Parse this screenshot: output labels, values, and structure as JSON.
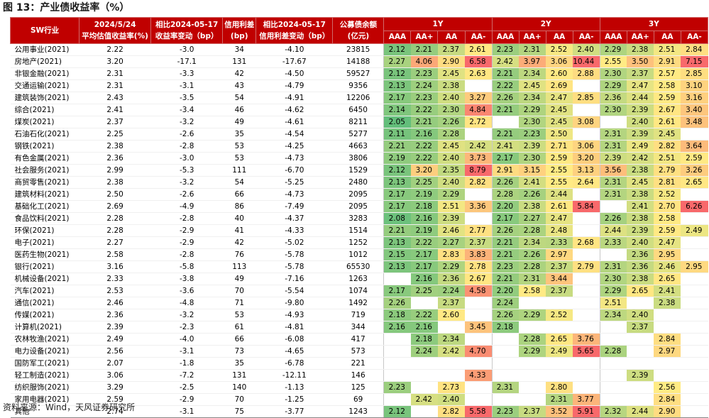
{
  "title": "图 13：产业债收益率（%）",
  "source": "资料来源：Wind，天风证券研究所",
  "header": {
    "industry": "SW行业",
    "yield_date": "2024/5/24",
    "yield_label": "平均估值收益率(%)",
    "yield_chg_top": "相比2024-05-17",
    "yield_chg_bottom": "收益率变动（bp）",
    "spread_top": "信用利差",
    "spread_bottom": "(bp)",
    "spread_chg_top": "相比2024-05-17",
    "spread_chg_bottom": "信用利差变动（bp）",
    "balance_top": "公募债余额",
    "balance_bottom": "(亿元)",
    "groups": [
      "1Y",
      "2Y",
      "3Y"
    ],
    "ratings": [
      "AAA",
      "AA+",
      "AA",
      "AA-"
    ]
  },
  "rows": [
    {
      "name": "公用事业(2021)",
      "yield": "2.22",
      "ychg": "-3.0",
      "spread": "34",
      "schg": "-4.10",
      "bal": "23815",
      "v": [
        "2.12",
        "2.21",
        "2.37",
        "2.61",
        "2.23",
        "2.31",
        "2.52",
        "2.40",
        "2.29",
        "2.38",
        "2.51",
        "2.84"
      ]
    },
    {
      "name": "房地产(2021)",
      "yield": "3.20",
      "ychg": "-17.1",
      "spread": "131",
      "schg": "-17.67",
      "bal": "14188",
      "v": [
        "2.27",
        "4.06",
        "2.90",
        "6.58",
        "2.42",
        "3.97",
        "3.06",
        "10.44",
        "2.55",
        "3.50",
        "2.91",
        "7.15"
      ]
    },
    {
      "name": "非银金融(2021)",
      "yield": "2.31",
      "ychg": "-3.3",
      "spread": "42",
      "schg": "-4.50",
      "bal": "59527",
      "v": [
        "2.12",
        "2.23",
        "2.45",
        "2.63",
        "2.21",
        "2.34",
        "2.60",
        "2.88",
        "2.30",
        "2.37",
        "2.57",
        "2.85"
      ]
    },
    {
      "name": "交通运输(2021)",
      "yield": "2.31",
      "ychg": "-3.1",
      "spread": "43",
      "schg": "-4.79",
      "bal": "9356",
      "v": [
        "2.13",
        "2.24",
        "2.38",
        "",
        "2.22",
        "2.45",
        "2.69",
        "",
        "2.29",
        "2.47",
        "2.58",
        "3.10"
      ]
    },
    {
      "name": "建筑装饰(2021)",
      "yield": "2.43",
      "ychg": "-3.5",
      "spread": "54",
      "schg": "-4.91",
      "bal": "12206",
      "v": [
        "2.17",
        "2.23",
        "2.40",
        "3.27",
        "2.26",
        "2.34",
        "2.47",
        "2.85",
        "2.36",
        "2.44",
        "2.59",
        "3.16"
      ]
    },
    {
      "name": "综合(2021)",
      "yield": "2.41",
      "ychg": "-3.4",
      "spread": "46",
      "schg": "-4.62",
      "bal": "6450",
      "v": [
        "2.14",
        "2.22",
        "2.30",
        "4.84",
        "2.21",
        "2.29",
        "2.45",
        "",
        "2.30",
        "2.39",
        "2.67",
        "3.40"
      ]
    },
    {
      "name": "煤炭(2021)",
      "yield": "2.37",
      "ychg": "-3.2",
      "spread": "49",
      "schg": "-4.61",
      "bal": "8211",
      "v": [
        "2.05",
        "2.21",
        "2.26",
        "2.72",
        "",
        "2.30",
        "2.45",
        "3.08",
        "",
        "2.40",
        "2.61",
        "3.48"
      ]
    },
    {
      "name": "石油石化(2021)",
      "yield": "2.25",
      "ychg": "-2.6",
      "spread": "35",
      "schg": "-4.54",
      "bal": "5277",
      "v": [
        "2.11",
        "2.16",
        "2.28",
        "",
        "2.21",
        "2.23",
        "2.50",
        "",
        "2.31",
        "2.39",
        "2.45",
        ""
      ]
    },
    {
      "name": "钢铁(2021)",
      "yield": "2.38",
      "ychg": "-2.8",
      "spread": "53",
      "schg": "-4.25",
      "bal": "4663",
      "v": [
        "2.21",
        "2.22",
        "2.45",
        "2.42",
        "2.41",
        "2.39",
        "2.71",
        "3.06",
        "2.31",
        "2.49",
        "2.82",
        "3.64"
      ]
    },
    {
      "name": "有色金属(2021)",
      "yield": "2.36",
      "ychg": "-3.0",
      "spread": "53",
      "schg": "-4.73",
      "bal": "3806",
      "v": [
        "2.19",
        "2.22",
        "2.40",
        "3.73",
        "2.17",
        "2.30",
        "2.59",
        "3.20",
        "2.39",
        "2.42",
        "2.51",
        "2.59"
      ]
    },
    {
      "name": "社会服务(2021)",
      "yield": "2.99",
      "ychg": "-5.3",
      "spread": "111",
      "schg": "-6.70",
      "bal": "1529",
      "v": [
        "2.12",
        "3.20",
        "2.35",
        "8.79",
        "2.91",
        "3.15",
        "2.55",
        "3.13",
        "3.56",
        "2.38",
        "2.79",
        "3.26"
      ]
    },
    {
      "name": "商贸零售(2021)",
      "yield": "2.38",
      "ychg": "-3.2",
      "spread": "54",
      "schg": "-5.25",
      "bal": "2480",
      "v": [
        "2.13",
        "2.25",
        "2.40",
        "2.82",
        "2.26",
        "2.41",
        "2.55",
        "2.64",
        "2.31",
        "2.45",
        "2.81",
        "2.65"
      ]
    },
    {
      "name": "建筑材料(2021)",
      "yield": "2.50",
      "ychg": "-2.6",
      "spread": "66",
      "schg": "-4.73",
      "bal": "2095",
      "v": [
        "2.17",
        "2.19",
        "2.29",
        "",
        "2.28",
        "2.26",
        "2.44",
        "",
        "2.31",
        "2.38",
        "2.52",
        ""
      ]
    },
    {
      "name": "基础化工(2021)",
      "yield": "2.69",
      "ychg": "-4.9",
      "spread": "86",
      "schg": "-7.49",
      "bal": "2095",
      "v": [
        "2.17",
        "2.18",
        "2.51",
        "3.36",
        "2.20",
        "2.38",
        "2.61",
        "5.84",
        "",
        "2.41",
        "2.70",
        "6.26"
      ]
    },
    {
      "name": "食品饮料(2021)",
      "yield": "2.28",
      "ychg": "-2.8",
      "spread": "40",
      "schg": "-4.37",
      "bal": "3283",
      "v": [
        "2.08",
        "2.16",
        "2.39",
        "",
        "2.17",
        "2.27",
        "2.47",
        "",
        "2.26",
        "2.38",
        "2.58",
        ""
      ]
    },
    {
      "name": "环保(2021)",
      "yield": "2.28",
      "ychg": "-2.9",
      "spread": "41",
      "schg": "-4.33",
      "bal": "1514",
      "v": [
        "2.21",
        "2.19",
        "2.46",
        "2.77",
        "2.26",
        "2.28",
        "2.48",
        "",
        "2.44",
        "2.39",
        "2.59",
        "2.49"
      ]
    },
    {
      "name": "电子(2021)",
      "yield": "2.27",
      "ychg": "-2.9",
      "spread": "42",
      "schg": "-5.02",
      "bal": "1252",
      "v": [
        "2.13",
        "2.22",
        "2.27",
        "2.37",
        "2.21",
        "2.34",
        "2.33",
        "2.68",
        "2.33",
        "2.40",
        "2.47",
        ""
      ]
    },
    {
      "name": "医药生物(2021)",
      "yield": "2.58",
      "ychg": "-2.8",
      "spread": "76",
      "schg": "-5.78",
      "bal": "1012",
      "v": [
        "2.15",
        "2.17",
        "2.83",
        "3.83",
        "2.21",
        "2.26",
        "2.97",
        "",
        "",
        "2.36",
        "2.95",
        ""
      ]
    },
    {
      "name": "银行(2021)",
      "yield": "3.16",
      "ychg": "-5.8",
      "spread": "113",
      "schg": "-5.78",
      "bal": "65530",
      "v": [
        "2.13",
        "2.17",
        "2.29",
        "2.78",
        "2.23",
        "2.28",
        "2.37",
        "2.79",
        "2.31",
        "2.36",
        "2.46",
        "2.95"
      ]
    },
    {
      "name": "机械设备(2021)",
      "yield": "2.33",
      "ychg": "-3.8",
      "spread": "49",
      "schg": "-7.16",
      "bal": "1263",
      "v": [
        "",
        "2.16",
        "2.36",
        "2.67",
        "2.21",
        "2.31",
        "3.44",
        "",
        "2.30",
        "2.38",
        "2.65",
        ""
      ]
    },
    {
      "name": "汽车(2021)",
      "yield": "2.53",
      "ychg": "-3.6",
      "spread": "70",
      "schg": "-5.54",
      "bal": "1074",
      "v": [
        "2.17",
        "2.25",
        "2.24",
        "4.58",
        "2.20",
        "2.58",
        "2.37",
        "",
        "2.29",
        "2.65",
        "2.41",
        ""
      ]
    },
    {
      "name": "通信(2021)",
      "yield": "2.46",
      "ychg": "-4.8",
      "spread": "71",
      "schg": "-9.80",
      "bal": "1492",
      "v": [
        "2.26",
        "",
        "2.37",
        "",
        "2.24",
        "",
        "",
        "",
        "2.51",
        "",
        "2.38",
        ""
      ]
    },
    {
      "name": "传媒(2021)",
      "yield": "2.36",
      "ychg": "-3.2",
      "spread": "53",
      "schg": "-4.93",
      "bal": "719",
      "v": [
        "2.18",
        "2.22",
        "2.60",
        "",
        "2.26",
        "2.29",
        "2.52",
        "",
        "2.34",
        "2.40",
        "",
        ""
      ]
    },
    {
      "name": "计算机(2021)",
      "yield": "2.39",
      "ychg": "-2.3",
      "spread": "61",
      "schg": "-4.81",
      "bal": "344",
      "v": [
        "2.16",
        "2.16",
        "",
        "3.45",
        "2.18",
        "",
        "",
        "",
        "",
        "2.37",
        "",
        ""
      ]
    },
    {
      "name": "农林牧渔(2021)",
      "yield": "2.49",
      "ychg": "-4.0",
      "spread": "66",
      "schg": "-6.08",
      "bal": "417",
      "v": [
        "",
        "2.18",
        "2.34",
        "",
        "",
        "2.28",
        "2.65",
        "3.76",
        "",
        "",
        "2.84",
        ""
      ]
    },
    {
      "name": "电力设备(2021)",
      "yield": "2.56",
      "ychg": "-3.1",
      "spread": "73",
      "schg": "-4.65",
      "bal": "573",
      "v": [
        "",
        "2.24",
        "2.42",
        "4.70",
        "",
        "2.29",
        "2.49",
        "5.65",
        "2.28",
        "",
        "2.97",
        ""
      ]
    },
    {
      "name": "国防军工(2021)",
      "yield": "2.07",
      "ychg": "-1.8",
      "spread": "35",
      "schg": "-6.78",
      "bal": "221",
      "v": [
        "",
        "",
        "",
        "",
        "",
        "",
        "",
        "",
        "",
        "",
        "",
        ""
      ]
    },
    {
      "name": "轻工制造(2021)",
      "yield": "3.06",
      "ychg": "-7.2",
      "spread": "131",
      "schg": "-12.11",
      "bal": "146",
      "v": [
        "",
        "",
        "",
        "4.33",
        "",
        "",
        "",
        "",
        "",
        "2.39",
        "",
        ""
      ]
    },
    {
      "name": "纺织服饰(2021)",
      "yield": "3.29",
      "ychg": "-2.5",
      "spread": "140",
      "schg": "-1.13",
      "bal": "125",
      "v": [
        "2.23",
        "",
        "2.73",
        "",
        "2.31",
        "",
        "2.80",
        "",
        "",
        "",
        "2.56",
        ""
      ]
    },
    {
      "name": "家用电器(2021)",
      "yield": "2.59",
      "ychg": "-2.9",
      "spread": "70",
      "schg": "-1.25",
      "bal": "69",
      "v": [
        "",
        "2.42",
        "2.40",
        "",
        "",
        "",
        "2.31",
        "3.77",
        "",
        "",
        "2.84",
        ""
      ]
    },
    {
      "name": "其他",
      "yield": "2.74",
      "ychg": "-3.1",
      "spread": "75",
      "schg": "-3.77",
      "bal": "1243",
      "v": [
        "2.12",
        "",
        "2.82",
        "5.58",
        "2.23",
        "2.37",
        "3.52",
        "5.91",
        "2.32",
        "2.44",
        "2.90",
        ""
      ]
    }
  ],
  "colors": {
    "header_bg": "#c00000",
    "header_text": "#ffffff",
    "scale_low": "#63be7b",
    "scale_mid": "#ffeb84",
    "scale_high": "#f8696b"
  }
}
